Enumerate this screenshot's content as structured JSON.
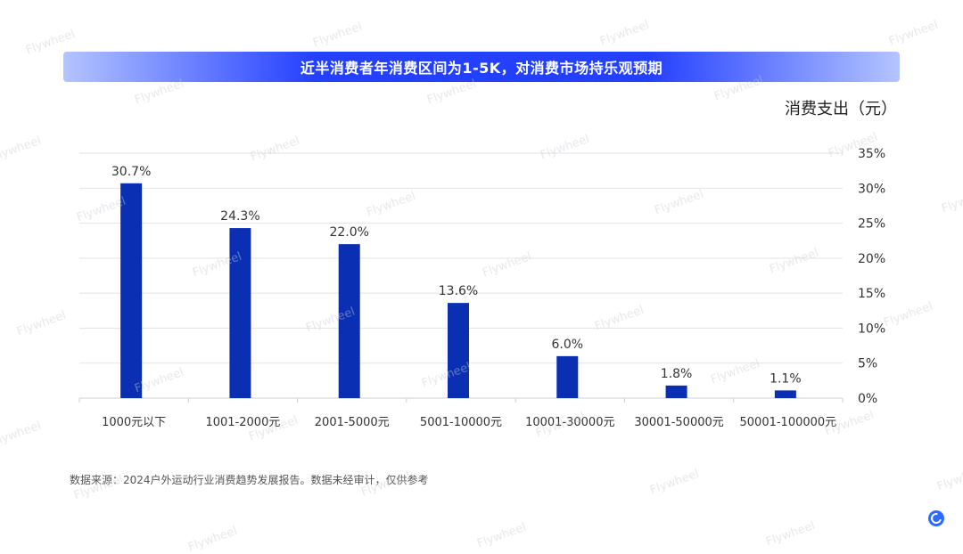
{
  "title": "近半消费者年消费区间为1-5K，对消费市场持乐观预期",
  "unit_label": "消费支出（元）",
  "source_note": "数据来源：2024户外运动行业消费趋势发展报告。数据未经审计，仅供参考",
  "watermark_text": "Flywheel",
  "brand_icon": "flywheel-logo-icon",
  "colors": {
    "bar": "#0a2fb3",
    "banner": "#2440ff",
    "grid": "#e3e3e3",
    "text": "#333333"
  },
  "chart_data": {
    "type": "bar",
    "categories": [
      "1000元以下",
      "1001-2000元",
      "2001-5000元",
      "5001-10000元",
      "10001-30000元",
      "30001-50000元",
      "50001-100000元"
    ],
    "values": [
      30.7,
      24.3,
      22.0,
      13.6,
      6.0,
      1.8,
      1.1
    ],
    "value_labels": [
      "30.7%",
      "24.3%",
      "22.0%",
      "13.6%",
      "6.0%",
      "1.8%",
      "1.1%"
    ],
    "ylim": [
      0,
      35
    ],
    "y_ticks": [
      0,
      5,
      10,
      15,
      20,
      25,
      30,
      35
    ],
    "y_tick_labels": [
      "0%",
      "5%",
      "10%",
      "15%",
      "20%",
      "25%",
      "30%",
      "35%"
    ],
    "y_axis_side": "right",
    "grid": true
  }
}
